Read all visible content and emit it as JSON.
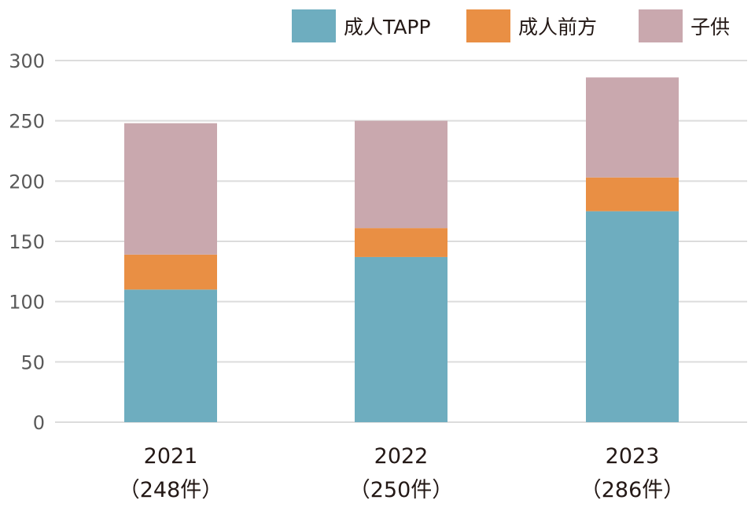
{
  "chart_data": {
    "type": "bar",
    "stacked": true,
    "title": "",
    "xlabel": "",
    "ylabel": "",
    "ylim": [
      0,
      300
    ],
    "yticks": [
      0,
      50,
      100,
      150,
      200,
      250,
      300
    ],
    "grid": true,
    "legend_position": "top-right",
    "categories": [
      "2021",
      "2022",
      "2023"
    ],
    "category_sublabels": [
      "（248件）",
      "（250件）",
      "（286件）"
    ],
    "series": [
      {
        "name": "成人TAPP",
        "color": "#6eadbf",
        "values": [
          110,
          137,
          175
        ]
      },
      {
        "name": "成人前方",
        "color": "#e98f44",
        "values": [
          29,
          24,
          28
        ]
      },
      {
        "name": "子供",
        "color": "#c9a8ae",
        "values": [
          109,
          89,
          83
        ]
      }
    ],
    "totals": [
      248,
      250,
      286
    ]
  }
}
